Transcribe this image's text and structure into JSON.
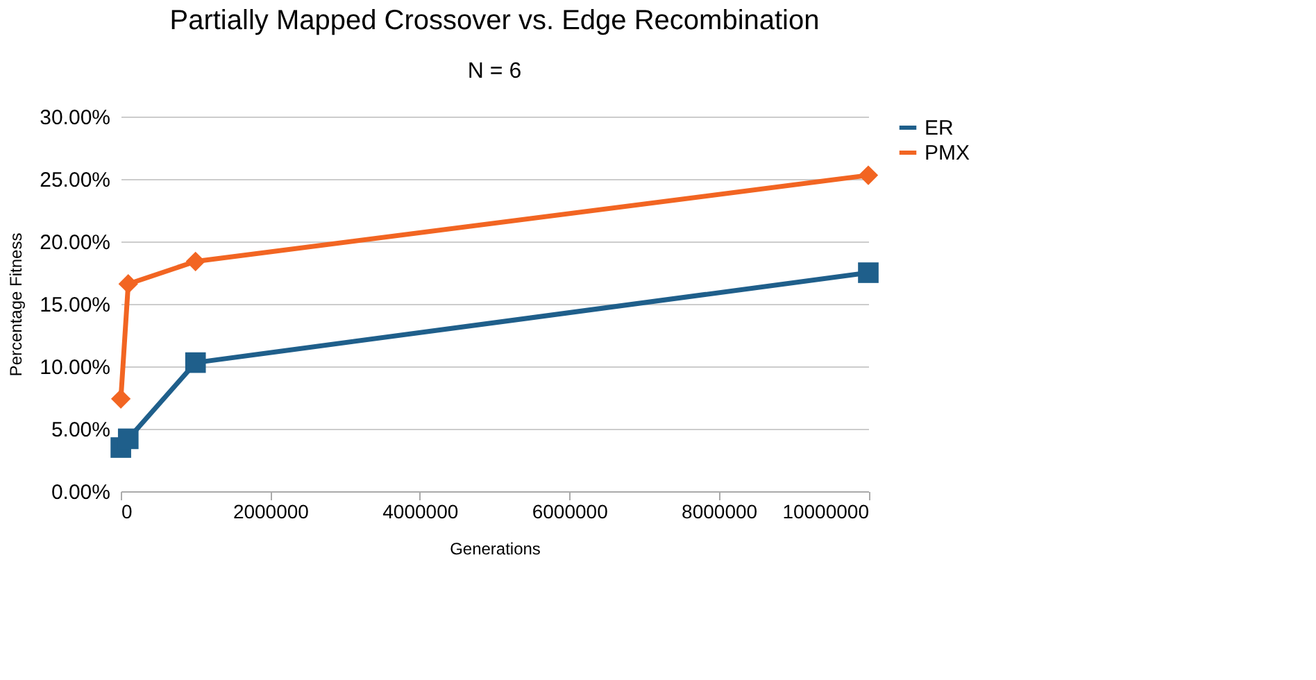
{
  "chart_data": {
    "type": "line",
    "title": "Partially Mapped Crossover vs. Edge Recombination",
    "subtitle": "N = 6",
    "xlabel": "Generations",
    "ylabel": "Percentage Fitness",
    "x": [
      1000,
      100000,
      1000000,
      10000000
    ],
    "series": [
      {
        "name": "ER",
        "color": "#1f5f8b",
        "marker": "square",
        "values": [
          3.5,
          4.2,
          10.3,
          17.5
        ]
      },
      {
        "name": "PMX",
        "color": "#f26522",
        "marker": "diamond",
        "values": [
          7.4,
          16.6,
          18.4,
          25.3
        ]
      }
    ],
    "xlim": [
      0,
      10000000
    ],
    "xticks": [
      0,
      2000000,
      4000000,
      6000000,
      8000000,
      10000000
    ],
    "ylim": [
      0,
      30
    ],
    "yticks": [
      {
        "value": 0,
        "label": "0.00%"
      },
      {
        "value": 5,
        "label": "5.00%"
      },
      {
        "value": 10,
        "label": "10.00%"
      },
      {
        "value": 15,
        "label": "15.00%"
      },
      {
        "value": 20,
        "label": "20.00%"
      },
      {
        "value": 25,
        "label": "25.00%"
      },
      {
        "value": 30,
        "label": "30.00%"
      }
    ],
    "grid": "y",
    "legend": "right",
    "line_style": "solid"
  }
}
